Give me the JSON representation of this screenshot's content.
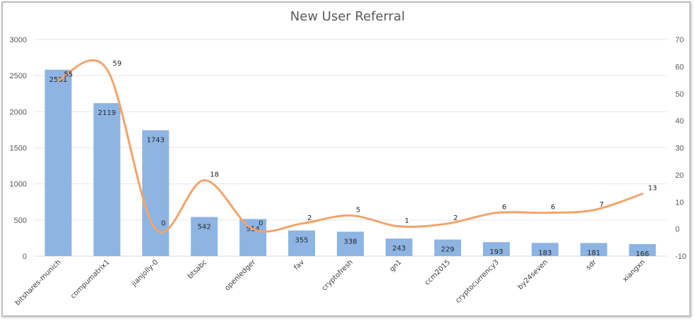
{
  "chart_data": {
    "type": "bar",
    "title": "New User Referral",
    "categories": [
      "bitshares-munich",
      "compumatrix1",
      "jianjolly-0",
      "btsabc",
      "openledger",
      "fav",
      "cryptofresh",
      "gn1",
      "ccm2015",
      "cryptocurrency3",
      "by24seven",
      "sdr",
      "xiangxn"
    ],
    "series": [
      {
        "kind": "bar",
        "axis": "left",
        "color": "#8db4e2",
        "values": [
          2581,
          2119,
          1743,
          542,
          514,
          355,
          338,
          243,
          229,
          193,
          183,
          181,
          166
        ]
      },
      {
        "kind": "line",
        "axis": "right",
        "color": "#f4a46a",
        "smooth": true,
        "values": [
          55,
          59,
          0,
          18,
          0,
          2,
          5,
          1,
          2,
          6,
          6,
          7,
          13
        ]
      }
    ],
    "y_left": {
      "min": 0,
      "max": 3000,
      "step": 500,
      "ticks": [
        "0",
        "500",
        "1000",
        "1500",
        "2000",
        "2500",
        "3000"
      ]
    },
    "y_right": {
      "min": -10,
      "max": 70,
      "step": 10,
      "ticks": [
        "-10",
        "0",
        "10",
        "20",
        "30",
        "40",
        "50",
        "60",
        "70"
      ]
    },
    "grid": true,
    "legend": "none"
  }
}
